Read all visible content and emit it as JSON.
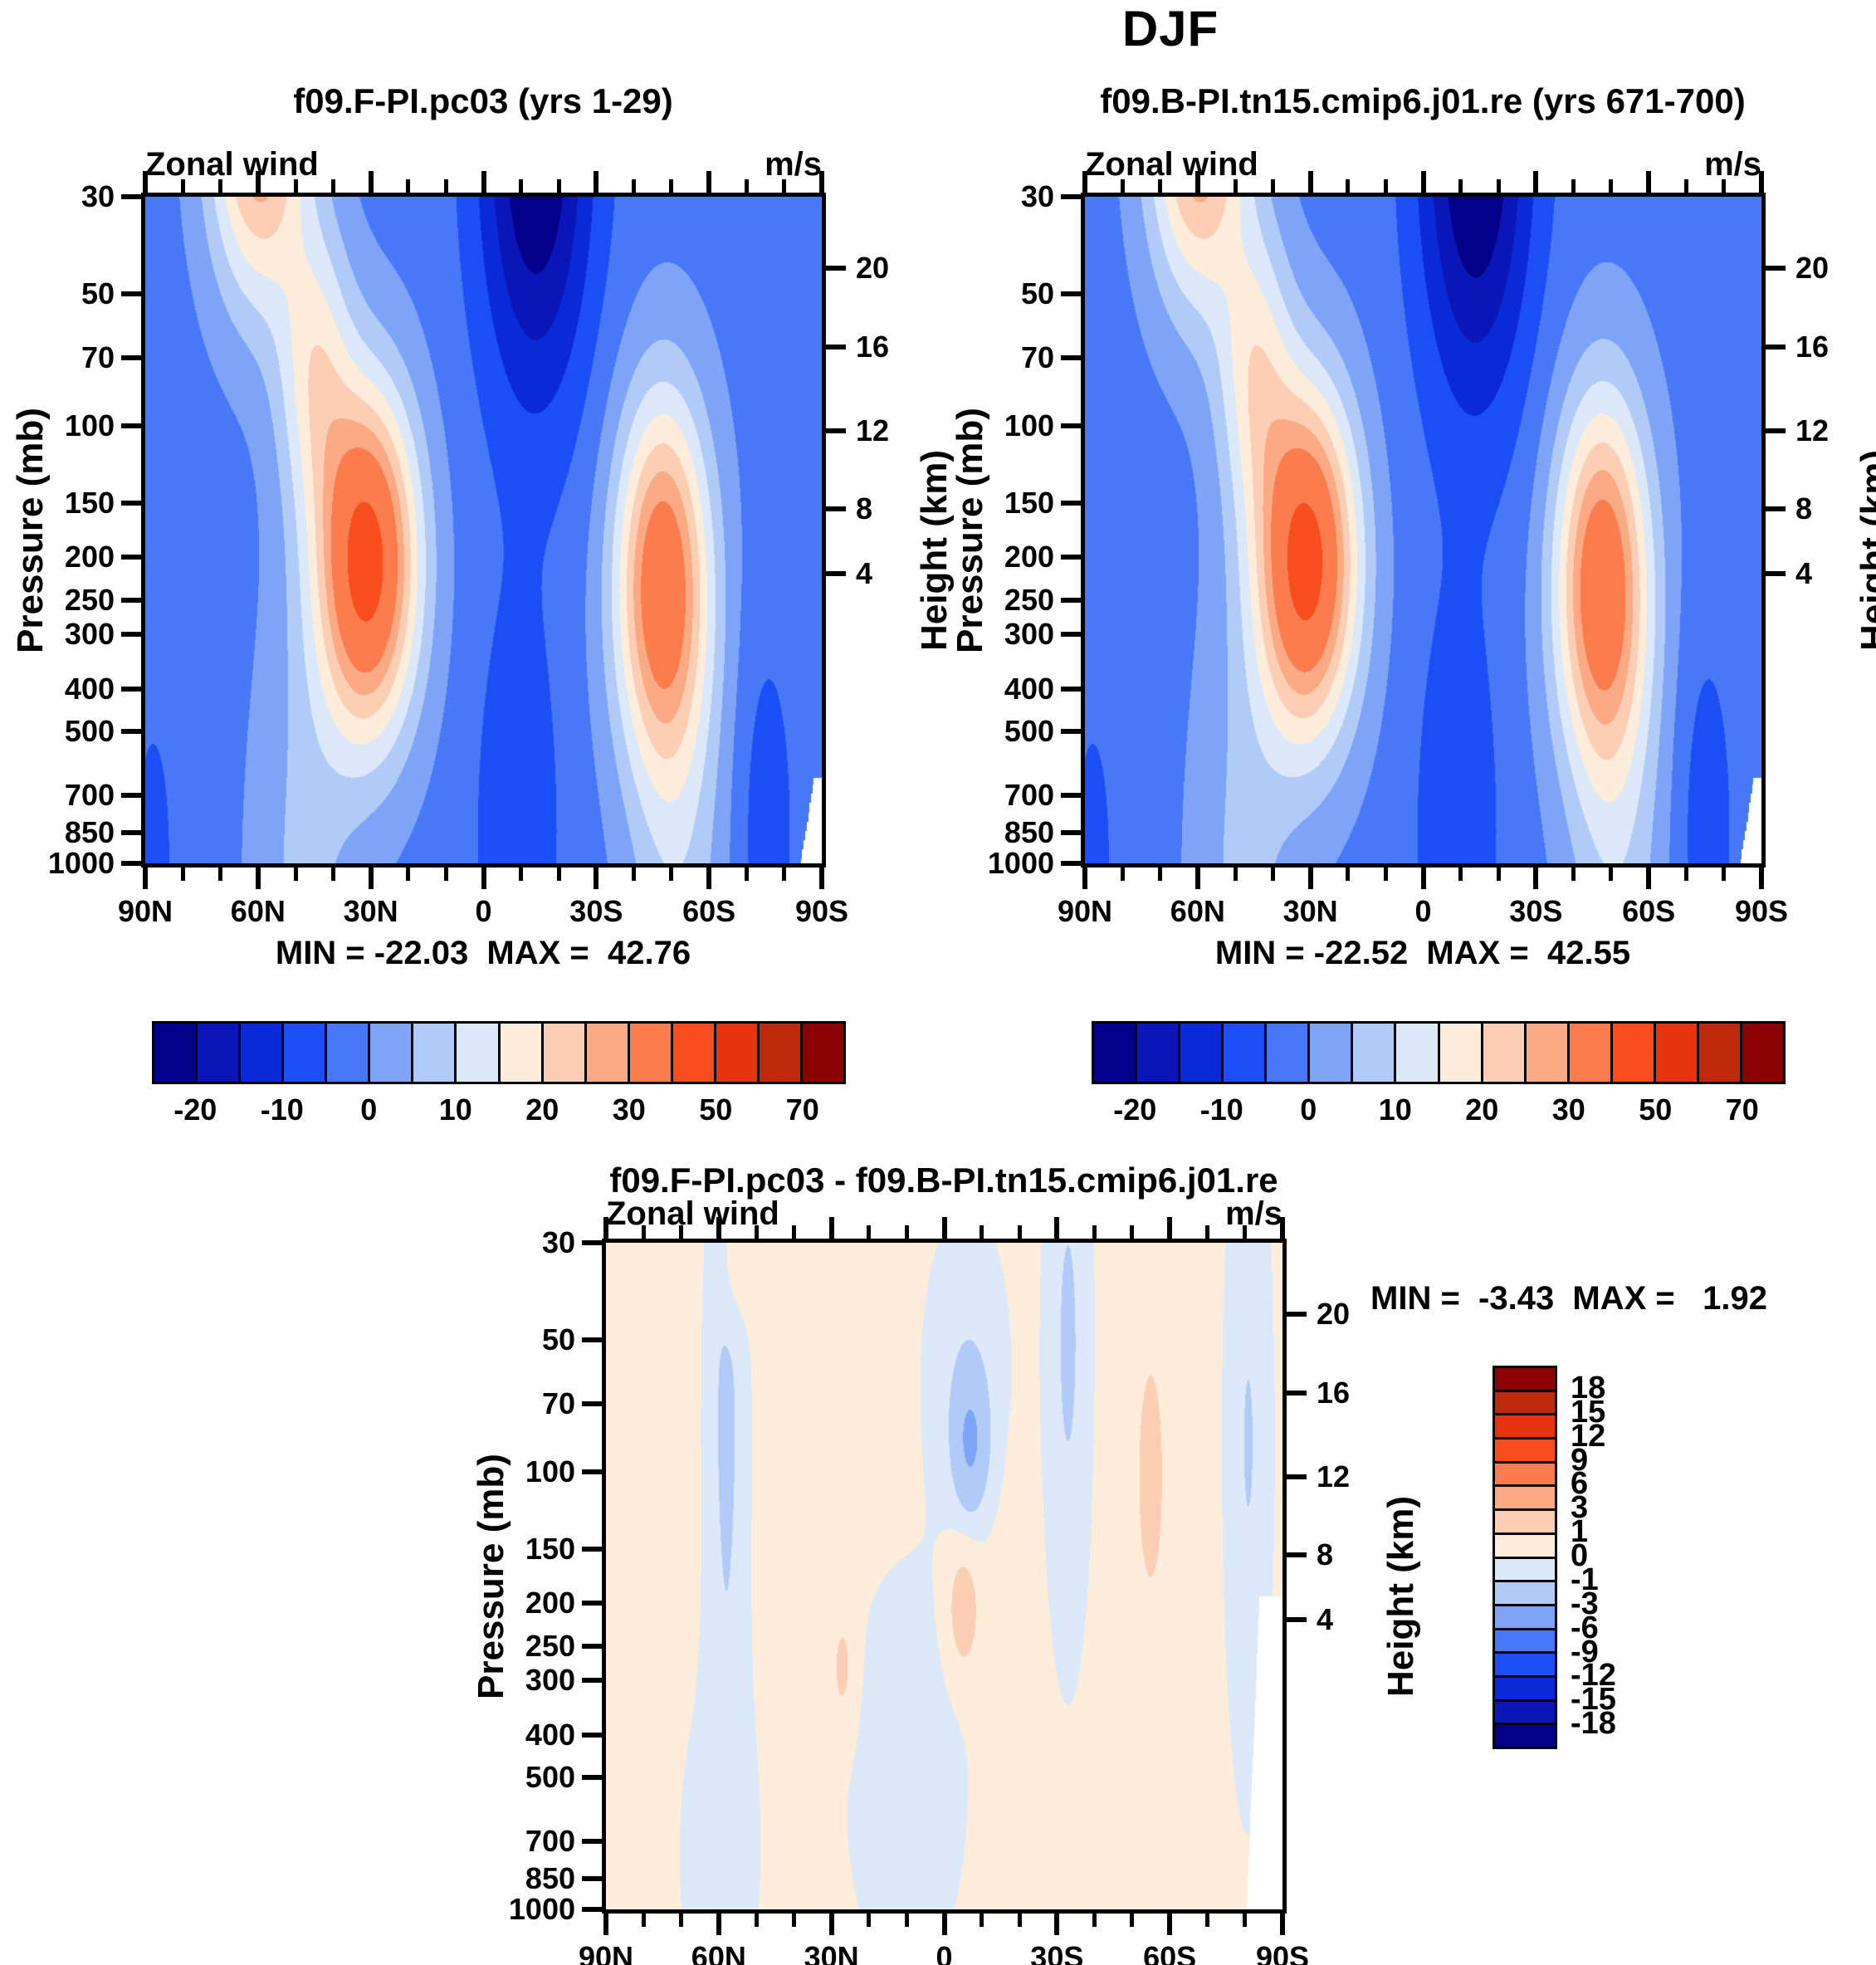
{
  "title": "DJF",
  "chart_data": [
    {
      "type": "contour",
      "id": "case1",
      "title": "f09.F-PI.pc03 (yrs 1-29)",
      "field_label": "Zonal wind",
      "units": "m/s",
      "stats": "MIN = -22.03  MAX =  42.76",
      "min": -22.03,
      "max": 42.76,
      "x_axis": {
        "tick_labels": [
          "90N",
          "60N",
          "30N",
          "0",
          "30S",
          "60S",
          "90S"
        ],
        "minor_tick_deg": 10
      },
      "y_left": {
        "label": "Pressure (mb)",
        "tick_labels": [
          "30",
          "50",
          "70",
          "100",
          "150",
          "200",
          "250",
          "300",
          "400",
          "500",
          "700",
          "850",
          "1000"
        ]
      },
      "y_right": {
        "label": "Height (km)",
        "tick_labels": [
          "20",
          "16",
          "12",
          "8",
          "4"
        ]
      },
      "levels": [
        -20,
        -15,
        -10,
        -5,
        0,
        5,
        10,
        15,
        20,
        25,
        30,
        40,
        50,
        60,
        70
      ],
      "colorbar_labels": [
        "-20",
        "-10",
        "0",
        "10",
        "20",
        "30",
        "50",
        "70"
      ],
      "palette": [
        "#00008B",
        "#0B16B8",
        "#0A2AD8",
        "#1C4EF5",
        "#4678F8",
        "#7EA4F8",
        "#B1CBF8",
        "#DCE9FB",
        "#FDEDDA",
        "#FCCFB5",
        "#FBAA84",
        "#FB7C4C",
        "#FA4D1D",
        "#E5330D",
        "#BC2A0B",
        "#8B0000"
      ],
      "field": {
        "base": -2,
        "gaussians": [
          {
            "a": 46,
            "lat": 31,
            "sx": 13.5,
            "t": 0.55,
            "st": 0.26
          },
          {
            "a": 36.5,
            "lat": -47.5,
            "sx": 12.5,
            "t": 0.58,
            "st": 0.28
          },
          {
            "a": 33,
            "lat": 60,
            "sx": 13,
            "t": -0.12,
            "st": 0.27
          },
          {
            "a": 17,
            "lat": 45,
            "sx": 10,
            "t": 0.25,
            "st": 0.22
          },
          {
            "a": -24,
            "lat": -14,
            "sx": 15,
            "t": -0.1,
            "st": 0.4
          },
          {
            "a": -7.5,
            "lat": -9,
            "sx": 11,
            "t": 0.95,
            "st": 0.35
          },
          {
            "a": 8,
            "lat": 48,
            "sx": 14,
            "t": 1.05,
            "st": 0.45
          },
          {
            "a": 9,
            "lat": -52,
            "sx": 13,
            "t": 1.05,
            "st": 0.5
          },
          {
            "a": -5,
            "lat": 88,
            "sx": 6,
            "t": 1.0,
            "st": 0.25
          },
          {
            "a": -6,
            "lat": -75,
            "sx": 8,
            "t": 0.95,
            "st": 0.3
          }
        ],
        "mask": {
          "t_start": 0.872,
          "lat_start": -88,
          "lat_bottom": -84.3
        }
      }
    },
    {
      "type": "contour",
      "id": "case2",
      "title": "f09.B-PI.tn15.cmip6.j01.re (yrs 671-700)",
      "field_label": "Zonal wind",
      "units": "m/s",
      "stats": "MIN = -22.52  MAX =  42.55",
      "min": -22.52,
      "max": 42.55,
      "x_axis": {
        "tick_labels": [
          "90N",
          "60N",
          "30N",
          "0",
          "30S",
          "60S",
          "90S"
        ],
        "minor_tick_deg": 10
      },
      "y_left": {
        "label": "Pressure (mb)",
        "tick_labels": [
          "30",
          "50",
          "70",
          "100",
          "150",
          "200",
          "250",
          "300",
          "400",
          "500",
          "700",
          "850",
          "1000"
        ]
      },
      "y_right": {
        "label": "Height (km)",
        "tick_labels": [
          "20",
          "16",
          "12",
          "8",
          "4"
        ]
      },
      "levels": [
        -20,
        -15,
        -10,
        -5,
        0,
        5,
        10,
        15,
        20,
        25,
        30,
        40,
        50,
        60,
        70
      ],
      "colorbar_labels": [
        "-20",
        "-10",
        "0",
        "10",
        "20",
        "30",
        "50",
        "70"
      ],
      "palette": [
        "#00008B",
        "#0B16B8",
        "#0A2AD8",
        "#1C4EF5",
        "#4678F8",
        "#7EA4F8",
        "#B1CBF8",
        "#DCE9FB",
        "#FDEDDA",
        "#FCCFB5",
        "#FBAA84",
        "#FB7C4C",
        "#FA4D1D",
        "#E5330D",
        "#BC2A0B",
        "#8B0000"
      ],
      "field": {
        "base": -2,
        "gaussians": [
          {
            "a": 45.8,
            "lat": 31,
            "sx": 13.5,
            "t": 0.55,
            "st": 0.26
          },
          {
            "a": 36.8,
            "lat": -47.5,
            "sx": 12.5,
            "t": 0.58,
            "st": 0.28
          },
          {
            "a": 33,
            "lat": 60,
            "sx": 13,
            "t": -0.12,
            "st": 0.27
          },
          {
            "a": 17,
            "lat": 45,
            "sx": 10,
            "t": 0.25,
            "st": 0.22
          },
          {
            "a": -24.4,
            "lat": -14,
            "sx": 15,
            "t": -0.1,
            "st": 0.4
          },
          {
            "a": -7.5,
            "lat": -9,
            "sx": 11,
            "t": 0.95,
            "st": 0.35
          },
          {
            "a": 8,
            "lat": 48,
            "sx": 14,
            "t": 1.05,
            "st": 0.45
          },
          {
            "a": 9,
            "lat": -52,
            "sx": 13,
            "t": 1.05,
            "st": 0.5
          },
          {
            "a": -5,
            "lat": 88,
            "sx": 6,
            "t": 1.0,
            "st": 0.25
          },
          {
            "a": -6,
            "lat": -75,
            "sx": 8,
            "t": 0.95,
            "st": 0.3
          }
        ],
        "mask": {
          "t_start": 0.872,
          "lat_start": -88,
          "lat_bottom": -84.3
        }
      }
    },
    {
      "type": "contour",
      "id": "difference",
      "title": "f09.F-PI.pc03 - f09.B-PI.tn15.cmip6.j01.re",
      "field_label": "Zonal wind",
      "units": "m/s",
      "stats": "MIN =  -3.43  MAX =   1.92",
      "min": -3.43,
      "max": 1.92,
      "x_axis": {
        "tick_labels": [
          "90N",
          "60N",
          "30N",
          "0",
          "30S",
          "60S",
          "90S"
        ],
        "minor_tick_deg": 10
      },
      "y_left": {
        "label": "Pressure (mb)",
        "tick_labels": [
          "30",
          "50",
          "70",
          "100",
          "150",
          "200",
          "250",
          "300",
          "400",
          "500",
          "700",
          "850",
          "1000"
        ]
      },
      "y_right": {
        "label": "Height (km)",
        "tick_labels": [
          "20",
          "16",
          "12",
          "8",
          "4"
        ]
      },
      "levels": [
        -18,
        -15,
        -12,
        -9,
        -6,
        -3,
        -1,
        0,
        1,
        3,
        6,
        9,
        12,
        15,
        18
      ],
      "colorbar_labels": [
        "18",
        "15",
        "12",
        "9",
        "6",
        "3",
        "1",
        "0",
        "-1",
        "-3",
        "-6",
        "-9",
        "-12",
        "-15",
        "-18"
      ],
      "palette": [
        "#00008B",
        "#0B16B8",
        "#0A2AD8",
        "#1C4EF5",
        "#4678F8",
        "#7EA4F8",
        "#B1CBF8",
        "#DCE9FB",
        "#FDEDDA",
        "#FCCFB5",
        "#FBAA84",
        "#FB7C4C",
        "#FA4D1D",
        "#E5330D",
        "#BC2A0B",
        "#8B0000"
      ],
      "field": {
        "base": 0.35,
        "gaussians": [
          {
            "a": -1.1,
            "lat": -6,
            "sx": 11,
            "t": 0.18,
            "st": 0.22
          },
          {
            "a": -3.0,
            "lat": -7,
            "sx": 4.5,
            "t": 0.3,
            "st": 0.1
          },
          {
            "a": -1.6,
            "lat": 58,
            "sx": 5.5,
            "t": 0.25,
            "st": 0.55
          },
          {
            "a": -1.5,
            "lat": -33,
            "sx": 6,
            "t": 0.15,
            "st": 0.45
          },
          {
            "a": -1.4,
            "lat": -81,
            "sx": 6,
            "t": 0.3,
            "st": 0.5
          },
          {
            "a": 1.2,
            "lat": 56,
            "sx": 4.5,
            "t": 0.03,
            "st": 0.1
          },
          {
            "a": 1.6,
            "lat": -5,
            "sx": 4.5,
            "t": 0.55,
            "st": 0.1
          },
          {
            "a": 1.1,
            "lat": 27,
            "sx": 3.5,
            "t": 0.64,
            "st": 0.1
          },
          {
            "a": -0.8,
            "lat": 10,
            "sx": 18,
            "t": 0.8,
            "st": 0.35
          },
          {
            "a": -0.75,
            "lat": 60,
            "sx": 12,
            "t": 0.92,
            "st": 0.28
          },
          {
            "a": 0.75,
            "lat": -55,
            "sx": 8,
            "t": 0.35,
            "st": 0.4
          }
        ],
        "mask": {
          "t_start": 0.53,
          "lat_start": -84,
          "lat_bottom": -80.5
        }
      }
    }
  ]
}
